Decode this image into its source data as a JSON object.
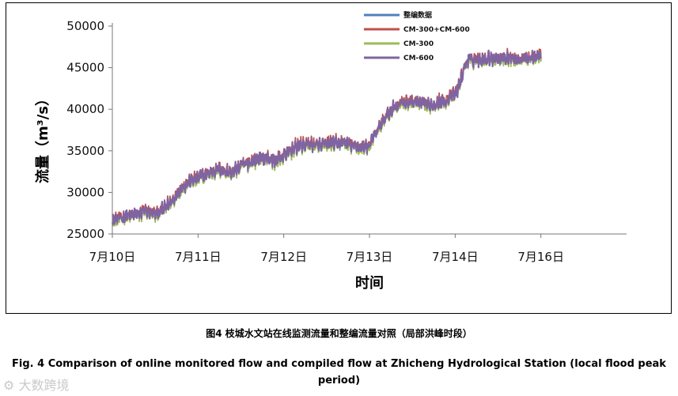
{
  "chart_data": {
    "type": "line",
    "title": "",
    "xlabel": "时间",
    "ylabel": "流量（m³/s）",
    "ylim": [
      25000,
      50000
    ],
    "yticks": [
      25000,
      30000,
      35000,
      40000,
      45000,
      50000
    ],
    "ytick_labels": [
      "25000",
      "30000",
      "35000",
      "40000",
      "45000",
      "50000"
    ],
    "xlim": [
      0,
      6
    ],
    "xticks": [
      0,
      1,
      2,
      3,
      4,
      5
    ],
    "xtick_labels": [
      "7月10日",
      "7月11日",
      "7月12日",
      "7月13日",
      "7月14日",
      "7月16日"
    ],
    "grid": false,
    "legend_position": "top-right",
    "x_unit": "days since 7月10日 (axis positions)",
    "trend": [
      [
        0.0,
        26700
      ],
      [
        0.2,
        27200
      ],
      [
        0.4,
        27700
      ],
      [
        0.5,
        27400
      ],
      [
        0.6,
        28000
      ],
      [
        0.7,
        29000
      ],
      [
        0.8,
        30500
      ],
      [
        0.9,
        31300
      ],
      [
        1.0,
        31700
      ],
      [
        1.1,
        32200
      ],
      [
        1.25,
        32800
      ],
      [
        1.4,
        32300
      ],
      [
        1.5,
        33200
      ],
      [
        1.6,
        33600
      ],
      [
        1.7,
        34000
      ],
      [
        1.8,
        34200
      ],
      [
        1.9,
        33800
      ],
      [
        2.0,
        34400
      ],
      [
        2.1,
        35200
      ],
      [
        2.2,
        35700
      ],
      [
        2.3,
        35800
      ],
      [
        2.4,
        35600
      ],
      [
        2.5,
        35800
      ],
      [
        2.6,
        35900
      ],
      [
        2.7,
        36000
      ],
      [
        2.8,
        35600
      ],
      [
        2.9,
        35400
      ],
      [
        3.0,
        35700
      ],
      [
        3.05,
        36600
      ],
      [
        3.1,
        37600
      ],
      [
        3.2,
        39200
      ],
      [
        3.3,
        40400
      ],
      [
        3.4,
        40800
      ],
      [
        3.5,
        40900
      ],
      [
        3.6,
        40700
      ],
      [
        3.7,
        40500
      ],
      [
        3.8,
        40800
      ],
      [
        3.9,
        41100
      ],
      [
        4.0,
        41800
      ],
      [
        4.05,
        43000
      ],
      [
        4.1,
        44800
      ],
      [
        4.15,
        45900
      ],
      [
        4.3,
        46000
      ],
      [
        4.4,
        46200
      ],
      [
        4.5,
        46100
      ],
      [
        4.6,
        46300
      ],
      [
        4.7,
        46000
      ],
      [
        4.8,
        46100
      ],
      [
        4.9,
        46300
      ],
      [
        5.0,
        46600
      ]
    ],
    "series": [
      {
        "name": "整编数据",
        "color": "#4f81bd",
        "noise": 700,
        "offset": 0
      },
      {
        "name": "CM-300+CM-600",
        "color": "#c0504d",
        "noise": 800,
        "offset": 150
      },
      {
        "name": "CM-300",
        "color": "#9bbb59",
        "noise": 800,
        "offset": -250
      },
      {
        "name": "CM-600",
        "color": "#8064a2",
        "noise": 850,
        "offset": 0
      }
    ]
  },
  "caption_cn": "图4 枝城水文站在线监测流量和整编流量对照（局部洪峰时段）",
  "caption_en": "Fig. 4 Comparison of online monitored flow and compiled flow at Zhicheng Hydrological Station (local flood peak period)",
  "watermark": "大数跨境"
}
